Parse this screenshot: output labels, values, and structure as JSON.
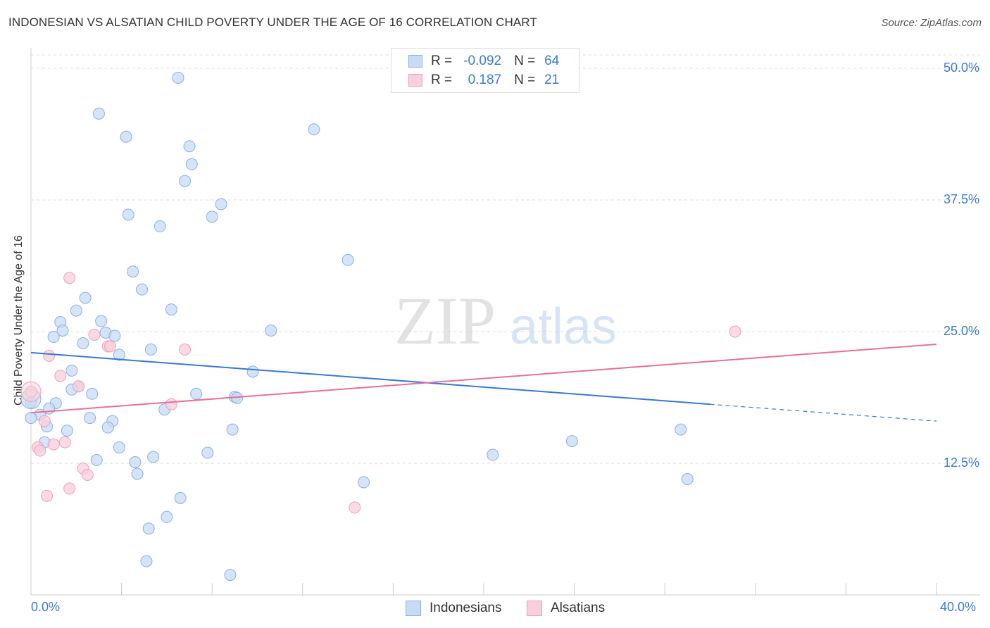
{
  "title": "INDONESIAN VS ALSATIAN CHILD POVERTY UNDER THE AGE OF 16 CORRELATION CHART",
  "source": "Source: ZipAtlas.com",
  "watermark": {
    "zip": "ZIP",
    "atlas": "atlas"
  },
  "legend": {
    "r_label": "R =",
    "n_label": "N =",
    "rows": [
      {
        "r": "-0.092",
        "n": "64"
      },
      {
        "r": "0.187",
        "n": "21"
      }
    ]
  },
  "colors": {
    "blue_fill": "#c7dbf5",
    "blue_stroke": "#8ab0e3",
    "blue_line": "#3a78d4",
    "pink_fill": "#f8cfdc",
    "pink_stroke": "#eaa1b9",
    "pink_line": "#e87099",
    "grid": "#dddddd",
    "axis_text": "#3d7bd1"
  },
  "chart_data": {
    "type": "scatter",
    "xlabel": "",
    "ylabel": "Child Poverty Under the Age of 16",
    "xlim": [
      0,
      40
    ],
    "ylim": [
      0,
      50
    ],
    "x_tick_labels": [
      "0.0%",
      "40.0%"
    ],
    "y_tick_labels": [
      "12.5%",
      "25.0%",
      "37.5%",
      "50.0%"
    ],
    "y_ticks": [
      12.5,
      25,
      37.5,
      50
    ],
    "grid": true,
    "series": [
      {
        "name": "Indonesians",
        "R": -0.092,
        "N": 64,
        "trend": {
          "x0": 0,
          "y0": 23.0,
          "x1": 30.0,
          "y1": 18.1,
          "dash_to_x": 40,
          "dash_y": 16.5
        },
        "points": [
          [
            6.5,
            49.1
          ],
          [
            3.0,
            45.7
          ],
          [
            4.2,
            43.5
          ],
          [
            12.5,
            44.2
          ],
          [
            7.0,
            42.6
          ],
          [
            7.1,
            40.9
          ],
          [
            6.8,
            39.3
          ],
          [
            8.4,
            37.1
          ],
          [
            4.3,
            36.1
          ],
          [
            8.0,
            35.9
          ],
          [
            5.7,
            35.0
          ],
          [
            14.0,
            31.8
          ],
          [
            4.5,
            30.7
          ],
          [
            4.9,
            29.0
          ],
          [
            2.4,
            28.2
          ],
          [
            2.0,
            27.0
          ],
          [
            6.2,
            27.1
          ],
          [
            1.3,
            25.9
          ],
          [
            3.1,
            26.0
          ],
          [
            1.4,
            25.1
          ],
          [
            3.3,
            24.9
          ],
          [
            3.7,
            24.6
          ],
          [
            1.0,
            24.5
          ],
          [
            10.6,
            25.1
          ],
          [
            2.3,
            23.9
          ],
          [
            5.3,
            23.3
          ],
          [
            3.9,
            22.8
          ],
          [
            9.8,
            21.2
          ],
          [
            1.8,
            21.3
          ],
          [
            2.1,
            19.8
          ],
          [
            1.8,
            19.5
          ],
          [
            2.7,
            19.1
          ],
          [
            7.3,
            19.1
          ],
          [
            9.0,
            18.8
          ],
          [
            9.1,
            18.7
          ],
          [
            0.0,
            18.3
          ],
          [
            1.1,
            18.2
          ],
          [
            0.8,
            17.7
          ],
          [
            0.4,
            17.1
          ],
          [
            0.0,
            16.8
          ],
          [
            5.9,
            17.6
          ],
          [
            2.6,
            16.8
          ],
          [
            3.6,
            16.5
          ],
          [
            0.7,
            16.0
          ],
          [
            3.4,
            15.9
          ],
          [
            1.6,
            15.6
          ],
          [
            8.9,
            15.7
          ],
          [
            28.7,
            15.7
          ],
          [
            0.6,
            14.5
          ],
          [
            23.9,
            14.6
          ],
          [
            3.9,
            14.0
          ],
          [
            7.8,
            13.5
          ],
          [
            20.4,
            13.3
          ],
          [
            5.4,
            13.1
          ],
          [
            2.9,
            12.8
          ],
          [
            4.6,
            12.6
          ],
          [
            4.7,
            11.5
          ],
          [
            29.0,
            11.0
          ],
          [
            14.7,
            10.7
          ],
          [
            6.6,
            9.2
          ],
          [
            6.0,
            7.4
          ],
          [
            5.2,
            6.3
          ],
          [
            5.1,
            3.2
          ],
          [
            8.8,
            1.9
          ]
        ]
      },
      {
        "name": "Alsatians",
        "R": 0.187,
        "N": 21,
        "trend": {
          "x0": 0,
          "y0": 17.3,
          "x1": 40,
          "y1": 23.8
        },
        "points": [
          [
            1.7,
            30.1
          ],
          [
            0.0,
            19.3
          ],
          [
            2.8,
            24.7
          ],
          [
            3.4,
            23.6
          ],
          [
            3.5,
            23.6
          ],
          [
            6.8,
            23.3
          ],
          [
            0.8,
            22.7
          ],
          [
            1.3,
            20.8
          ],
          [
            2.1,
            19.8
          ],
          [
            6.2,
            18.1
          ],
          [
            0.6,
            16.5
          ],
          [
            1.5,
            14.5
          ],
          [
            1.0,
            14.3
          ],
          [
            0.3,
            14.0
          ],
          [
            0.4,
            13.7
          ],
          [
            2.3,
            12.0
          ],
          [
            2.5,
            11.4
          ],
          [
            1.7,
            10.1
          ],
          [
            0.7,
            9.4
          ],
          [
            14.3,
            8.3
          ],
          [
            31.1,
            25.0
          ]
        ]
      }
    ]
  }
}
